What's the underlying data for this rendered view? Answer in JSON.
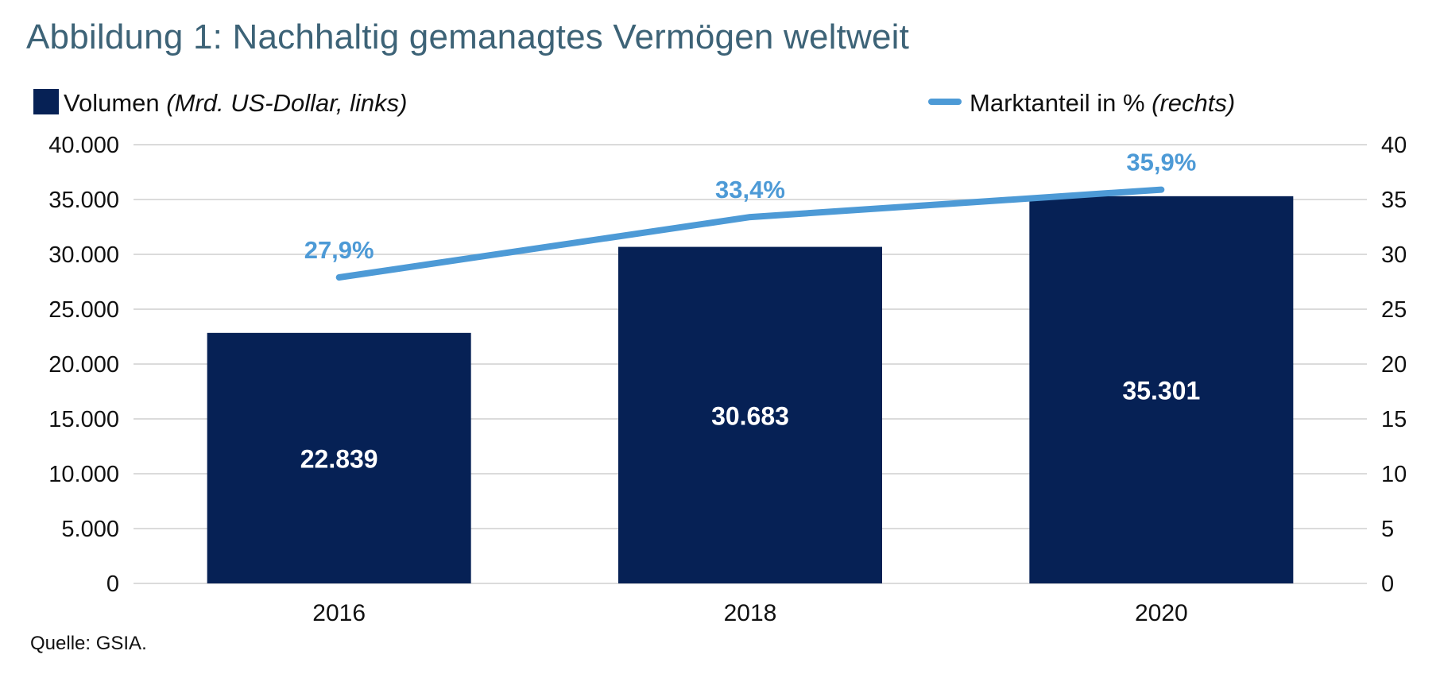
{
  "title": "Abbildung 1: Nachhaltig gemanagtes Vermögen weltweit",
  "source": "Quelle: GSIA.",
  "colors": {
    "title": "#3d6377",
    "bar": "#062155",
    "line": "#4d9ad6",
    "grid": "#cfcfcf",
    "bar_label": "#ffffff"
  },
  "chart_data": {
    "type": "bar",
    "title": "Abbildung 1: Nachhaltig gemanagtes Vermögen weltweit",
    "categories": [
      "2016",
      "2018",
      "2020"
    ],
    "series": [
      {
        "name": "Volumen",
        "name_suffix": "(Mrd. US-Dollar, links)",
        "type": "bar",
        "axis": "left",
        "values": [
          22839,
          30683,
          35301
        ],
        "labels": [
          "22.839",
          "30.683",
          "35.301"
        ]
      },
      {
        "name": "Marktanteil in %",
        "name_suffix": "(rechts)",
        "type": "line",
        "axis": "right",
        "values": [
          27.9,
          33.4,
          35.9
        ],
        "labels": [
          "27,9%",
          "33,4%",
          "35,9%"
        ]
      }
    ],
    "y_left": {
      "min": 0,
      "max": 40000,
      "step": 5000,
      "tick_labels": [
        "0",
        "5.000",
        "10.000",
        "15.000",
        "20.000",
        "25.000",
        "30.000",
        "35.000",
        "40.000"
      ]
    },
    "y_right": {
      "min": 0,
      "max": 40,
      "step": 5,
      "tick_labels": [
        "0",
        "5",
        "10",
        "15",
        "20",
        "25",
        "30",
        "35",
        "40"
      ]
    },
    "grid": true,
    "legend_position": "top"
  }
}
